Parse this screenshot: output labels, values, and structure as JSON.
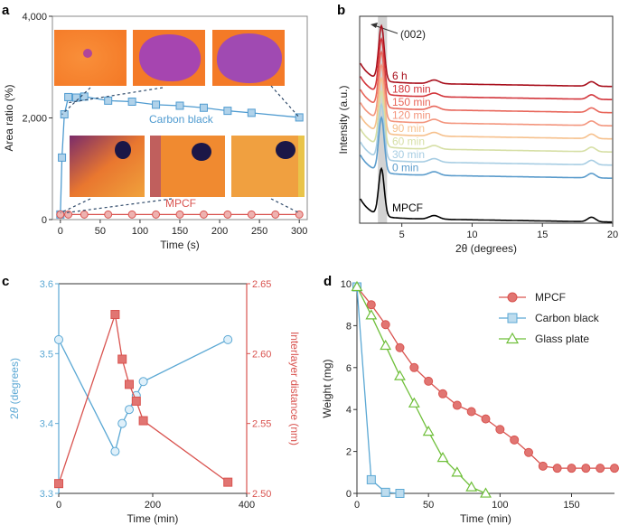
{
  "chart_data": [
    {
      "panel": "a",
      "type": "scatter",
      "xlabel": "Time (s)",
      "ylabel": "Area ratio (%)",
      "xlim": [
        -10,
        310
      ],
      "ylim": [
        0,
        4000
      ],
      "xticks": [
        0,
        50,
        100,
        150,
        200,
        250,
        300
      ],
      "yticks": [
        0,
        2000,
        4000
      ],
      "ytick_labels": [
        "0",
        "2,000",
        "4,000"
      ],
      "series": [
        {
          "name": "Carbon black",
          "color": "#4f9bd0",
          "marker": "square",
          "x": [
            0,
            2,
            5,
            10,
            20,
            30,
            60,
            90,
            120,
            150,
            180,
            210,
            240,
            300
          ],
          "y": [
            100,
            1220,
            2070,
            2410,
            2400,
            2420,
            2340,
            2320,
            2260,
            2240,
            2200,
            2140,
            2100,
            2010
          ]
        },
        {
          "name": "MPCF",
          "color": "#d9534f",
          "marker": "circle",
          "x": [
            0,
            10,
            30,
            60,
            90,
            120,
            150,
            180,
            210,
            240,
            270,
            300
          ],
          "y": [
            100,
            100,
            100,
            100,
            100,
            100,
            100,
            100,
            100,
            100,
            100,
            100
          ]
        }
      ],
      "insets": [
        "magenta-spots",
        "dark-spots"
      ]
    },
    {
      "panel": "b",
      "type": "line",
      "xlabel": "2θ (degrees)",
      "ylabel": "Intensity (a.u.)",
      "xlim": [
        2,
        20
      ],
      "xticks": [
        5,
        10,
        15,
        20
      ],
      "annotation": "(002)",
      "series": [
        {
          "name": "6 h",
          "color": "#a80f1c"
        },
        {
          "name": "180 min",
          "color": "#d2343a"
        },
        {
          "name": "150 min",
          "color": "#e8665a"
        },
        {
          "name": "120 min",
          "color": "#f3957d"
        },
        {
          "name": "90 min",
          "color": "#f6c08c"
        },
        {
          "name": "60 min",
          "color": "#d6dfa5"
        },
        {
          "name": "30 min",
          "color": "#a7cde3"
        },
        {
          "name": "0 min",
          "color": "#5b9ccc"
        },
        {
          "name": "MPCF",
          "color": "#000000"
        }
      ]
    },
    {
      "panel": "c",
      "type": "scatter",
      "xlabel": "Time (min)",
      "ylabel": "2θ (degrees)",
      "ylabel_right": "Interlayer distance (nm)",
      "xlim": [
        0,
        400
      ],
      "xticks": [
        0,
        200,
        400
      ],
      "ylim": [
        3.3,
        3.6
      ],
      "yticks": [
        3.3,
        3.4,
        3.5,
        3.6
      ],
      "ylim_right": [
        2.5,
        2.65
      ],
      "yticks_right": [
        2.5,
        2.55,
        2.6,
        2.65
      ],
      "series": [
        {
          "name": "2θ",
          "axis": "left",
          "color": "#5ba8d4",
          "marker": "circle",
          "x": [
            0,
            120,
            135,
            150,
            165,
            180,
            360
          ],
          "y": [
            3.52,
            3.36,
            3.4,
            3.42,
            3.44,
            3.46,
            3.52
          ]
        },
        {
          "name": "Interlayer distance",
          "axis": "right",
          "color": "#d9534f",
          "marker": "square",
          "x": [
            0,
            120,
            135,
            150,
            165,
            180,
            360
          ],
          "y": [
            2.507,
            2.628,
            2.596,
            2.578,
            2.566,
            2.552,
            2.508
          ]
        }
      ]
    },
    {
      "panel": "d",
      "type": "line",
      "xlabel": "Time (min)",
      "ylabel": "Weight (mg)",
      "xlim": [
        0,
        180
      ],
      "xticks": [
        0,
        50,
        100,
        150
      ],
      "ylim": [
        0,
        10
      ],
      "yticks": [
        0,
        2,
        4,
        6,
        8,
        10
      ],
      "legend": "top-right",
      "series": [
        {
          "name": "MPCF",
          "color": "#d9534f",
          "marker": "circle",
          "x": [
            0,
            10,
            20,
            30,
            40,
            50,
            60,
            70,
            80,
            90,
            100,
            110,
            120,
            130,
            140,
            150,
            160,
            170,
            180
          ],
          "y": [
            9.85,
            9.0,
            8.05,
            6.95,
            6.0,
            5.35,
            4.75,
            4.2,
            3.9,
            3.55,
            3.05,
            2.55,
            1.95,
            1.3,
            1.2,
            1.2,
            1.2,
            1.2,
            1.2
          ]
        },
        {
          "name": "Carbon black",
          "color": "#5ba8d4",
          "marker": "square",
          "x": [
            0,
            10,
            20,
            30
          ],
          "y": [
            9.85,
            0.65,
            0.05,
            0.0
          ]
        },
        {
          "name": "Glass plate",
          "color": "#6fbf3a",
          "marker": "triangle",
          "x": [
            0,
            10,
            20,
            30,
            40,
            50,
            60,
            70,
            80,
            90
          ],
          "y": [
            9.85,
            8.5,
            7.05,
            5.6,
            4.3,
            2.95,
            1.7,
            1.0,
            0.3,
            -0.05
          ]
        }
      ]
    }
  ],
  "panels": {
    "a": {
      "label": "a",
      "label_cb": "Carbon black",
      "label_mpcf": "MPCF"
    },
    "b": {
      "label": "b"
    },
    "c": {
      "label": "c"
    },
    "d": {
      "label": "d"
    }
  }
}
